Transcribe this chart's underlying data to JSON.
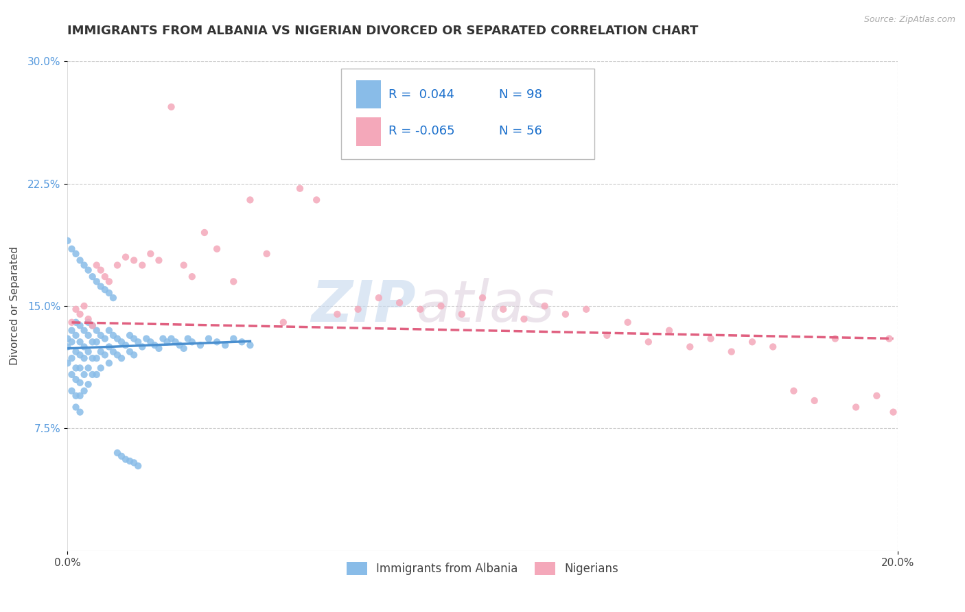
{
  "title": "IMMIGRANTS FROM ALBANIA VS NIGERIAN DIVORCED OR SEPARATED CORRELATION CHART",
  "source_text": "Source: ZipAtlas.com",
  "ylabel": "Divorced or Separated",
  "xlim": [
    0.0,
    0.2
  ],
  "ylim": [
    0.0,
    0.3
  ],
  "ytick_labels": [
    "7.5%",
    "15.0%",
    "22.5%",
    "30.0%"
  ],
  "ytick_positions": [
    0.075,
    0.15,
    0.225,
    0.3
  ],
  "xtick_positions": [
    0.0,
    0.2
  ],
  "xtick_labels": [
    "0.0%",
    "20.0%"
  ],
  "background_color": "#ffffff",
  "color_albania": "#89bce8",
  "color_nigerian": "#f4a8ba",
  "trendline_albania_color": "#4a8fcf",
  "trendline_nigerian_color": "#e06080",
  "grid_color": "#cccccc",
  "title_fontsize": 13,
  "axis_label_fontsize": 11,
  "tick_fontsize": 11,
  "legend_color": "#1a6fcc",
  "albania_scatter_x": [
    0.0,
    0.0,
    0.0,
    0.001,
    0.001,
    0.001,
    0.001,
    0.001,
    0.002,
    0.002,
    0.002,
    0.002,
    0.002,
    0.002,
    0.002,
    0.003,
    0.003,
    0.003,
    0.003,
    0.003,
    0.003,
    0.003,
    0.004,
    0.004,
    0.004,
    0.004,
    0.004,
    0.005,
    0.005,
    0.005,
    0.005,
    0.005,
    0.006,
    0.006,
    0.006,
    0.006,
    0.007,
    0.007,
    0.007,
    0.007,
    0.008,
    0.008,
    0.008,
    0.009,
    0.009,
    0.01,
    0.01,
    0.01,
    0.011,
    0.011,
    0.012,
    0.012,
    0.013,
    0.013,
    0.014,
    0.015,
    0.015,
    0.016,
    0.016,
    0.017,
    0.018,
    0.019,
    0.02,
    0.021,
    0.022,
    0.023,
    0.024,
    0.025,
    0.026,
    0.027,
    0.028,
    0.029,
    0.03,
    0.032,
    0.034,
    0.036,
    0.038,
    0.04,
    0.042,
    0.044,
    0.0,
    0.001,
    0.002,
    0.003,
    0.004,
    0.005,
    0.006,
    0.007,
    0.008,
    0.009,
    0.01,
    0.011,
    0.012,
    0.013,
    0.014,
    0.015,
    0.016,
    0.017
  ],
  "albania_scatter_y": [
    0.13,
    0.125,
    0.115,
    0.135,
    0.128,
    0.118,
    0.108,
    0.098,
    0.14,
    0.132,
    0.122,
    0.112,
    0.105,
    0.095,
    0.088,
    0.138,
    0.128,
    0.12,
    0.112,
    0.103,
    0.095,
    0.085,
    0.135,
    0.125,
    0.118,
    0.108,
    0.098,
    0.14,
    0.132,
    0.122,
    0.112,
    0.102,
    0.138,
    0.128,
    0.118,
    0.108,
    0.135,
    0.128,
    0.118,
    0.108,
    0.132,
    0.122,
    0.112,
    0.13,
    0.12,
    0.135,
    0.125,
    0.115,
    0.132,
    0.122,
    0.13,
    0.12,
    0.128,
    0.118,
    0.126,
    0.132,
    0.122,
    0.13,
    0.12,
    0.128,
    0.125,
    0.13,
    0.128,
    0.126,
    0.124,
    0.13,
    0.128,
    0.13,
    0.128,
    0.126,
    0.124,
    0.13,
    0.128,
    0.126,
    0.13,
    0.128,
    0.126,
    0.13,
    0.128,
    0.126,
    0.19,
    0.185,
    0.182,
    0.178,
    0.175,
    0.172,
    0.168,
    0.165,
    0.162,
    0.16,
    0.158,
    0.155,
    0.06,
    0.058,
    0.056,
    0.055,
    0.054,
    0.052
  ],
  "nigerian_scatter_x": [
    0.001,
    0.002,
    0.003,
    0.004,
    0.005,
    0.006,
    0.007,
    0.008,
    0.009,
    0.01,
    0.012,
    0.014,
    0.016,
    0.018,
    0.02,
    0.022,
    0.025,
    0.028,
    0.03,
    0.033,
    0.036,
    0.04,
    0.044,
    0.048,
    0.052,
    0.056,
    0.06,
    0.065,
    0.07,
    0.075,
    0.08,
    0.085,
    0.09,
    0.095,
    0.1,
    0.105,
    0.11,
    0.115,
    0.12,
    0.125,
    0.13,
    0.135,
    0.14,
    0.145,
    0.15,
    0.155,
    0.16,
    0.165,
    0.17,
    0.175,
    0.18,
    0.185,
    0.19,
    0.195,
    0.198,
    0.199
  ],
  "nigerian_scatter_y": [
    0.14,
    0.148,
    0.145,
    0.15,
    0.142,
    0.138,
    0.175,
    0.172,
    0.168,
    0.165,
    0.175,
    0.18,
    0.178,
    0.175,
    0.182,
    0.178,
    0.272,
    0.175,
    0.168,
    0.195,
    0.185,
    0.165,
    0.215,
    0.182,
    0.14,
    0.222,
    0.215,
    0.145,
    0.148,
    0.155,
    0.152,
    0.148,
    0.15,
    0.145,
    0.155,
    0.148,
    0.142,
    0.15,
    0.145,
    0.148,
    0.132,
    0.14,
    0.128,
    0.135,
    0.125,
    0.13,
    0.122,
    0.128,
    0.125,
    0.098,
    0.092,
    0.13,
    0.088,
    0.095,
    0.13,
    0.085
  ]
}
